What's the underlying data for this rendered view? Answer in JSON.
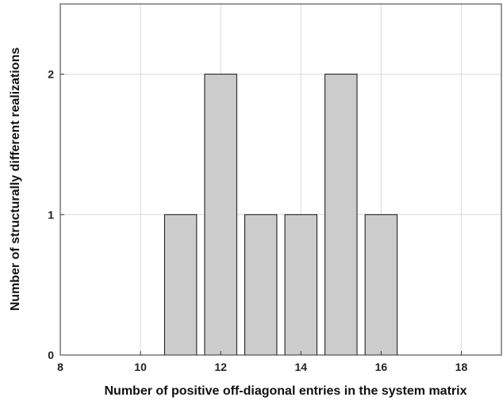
{
  "chart_data": {
    "type": "bar",
    "xlabel": "Number of positive off-diagonal entries in the system matrix",
    "ylabel": "Number of structurally different realizations",
    "xlim": [
      8,
      19
    ],
    "ylim": [
      0,
      2.5
    ],
    "xticks": [
      8,
      10,
      12,
      14,
      16,
      18
    ],
    "yticks": [
      0,
      1,
      2
    ],
    "grid": true,
    "bar_width": 0.8,
    "x": [
      9,
      10,
      11,
      12,
      13,
      14,
      15,
      16,
      17,
      18
    ],
    "values": [
      0,
      0,
      1,
      2,
      1,
      1,
      2,
      1,
      0,
      0
    ]
  }
}
